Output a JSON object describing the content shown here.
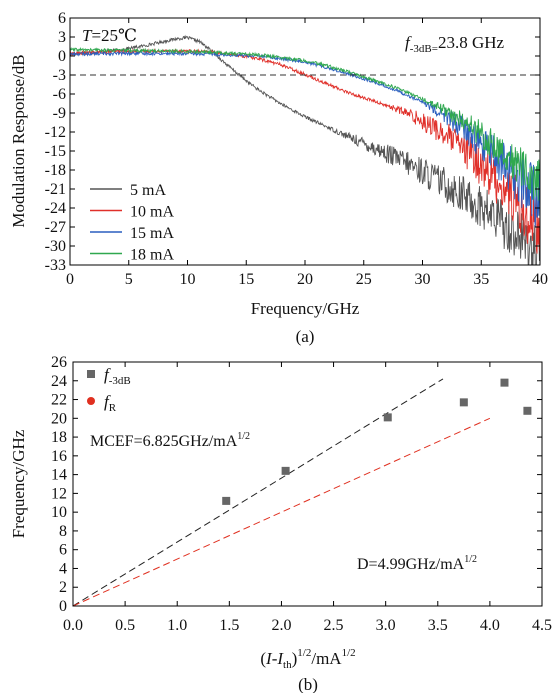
{
  "chart_data": [
    {
      "type": "line",
      "panel_label": "(a)",
      "xlabel": "Frequency/GHz",
      "ylabel": "Modulation Response/dB",
      "xlim": [
        0,
        40
      ],
      "ylim": [
        -33,
        6
      ],
      "xticks": [
        0,
        5,
        10,
        15,
        20,
        25,
        30,
        35,
        40
      ],
      "yticks": [
        6,
        3,
        0,
        -3,
        -6,
        -9,
        -12,
        -15,
        -18,
        -21,
        -24,
        -27,
        -30,
        -33
      ],
      "annotation_T_var": "T",
      "annotation_T_value": "=25℃",
      "annotation_f_var": "f",
      "annotation_f_sub": "-3dB=",
      "annotation_f_value": "23.8 GHz",
      "reference_line": {
        "y": -3,
        "style": "dashed",
        "color": "#333333"
      },
      "legend_position": "bottom-left",
      "series": [
        {
          "name": "5 mA",
          "color": "#555555",
          "x": [
            0,
            2,
            4,
            6,
            8,
            9,
            10,
            11,
            12,
            13,
            14,
            15,
            16,
            18,
            20,
            22,
            24,
            26,
            28,
            30,
            32,
            34,
            36,
            38,
            40
          ],
          "y": [
            0.3,
            0.6,
            0.9,
            1.5,
            2.3,
            2.7,
            2.9,
            2.3,
            0.9,
            -0.8,
            -2.4,
            -3.9,
            -5.3,
            -7.6,
            -9.6,
            -11.3,
            -13.0,
            -14.6,
            -16.3,
            -18.2,
            -20.3,
            -22.6,
            -25.2,
            -28.0,
            -31.5
          ],
          "noise_from": 22,
          "noise_amp": 4.5
        },
        {
          "name": "10 mA",
          "color": "#e0302a",
          "x": [
            0,
            4,
            8,
            10,
            12,
            14,
            16,
            18,
            20,
            22,
            24,
            26,
            28,
            30,
            32,
            34,
            36,
            38,
            40
          ],
          "y": [
            0.4,
            0.7,
            0.8,
            0.8,
            0.6,
            0.2,
            -0.4,
            -1.4,
            -2.9,
            -4.5,
            -6.0,
            -7.2,
            -8.5,
            -10.2,
            -12.5,
            -15.5,
            -19.0,
            -23.0,
            -27.0
          ],
          "noise_from": 27,
          "noise_amp": 5.0
        },
        {
          "name": "15 mA",
          "color": "#2a5fbf",
          "x": [
            0,
            4,
            8,
            12,
            16,
            20,
            22,
            24,
            26,
            28,
            30,
            32,
            34,
            36,
            38,
            40
          ],
          "y": [
            0.3,
            0.4,
            0.4,
            0.3,
            0.0,
            -0.9,
            -1.9,
            -3.0,
            -4.2,
            -5.6,
            -7.3,
            -9.5,
            -12.2,
            -15.5,
            -19.0,
            -23.0
          ],
          "noise_from": 30,
          "noise_amp": 5.0
        },
        {
          "name": "18 mA",
          "color": "#2fa84f",
          "x": [
            0,
            4,
            8,
            12,
            16,
            20,
            22,
            24,
            26,
            28,
            30,
            32,
            34,
            36,
            38,
            40
          ],
          "y": [
            1.0,
            0.9,
            0.8,
            0.6,
            0.2,
            -0.7,
            -1.6,
            -2.7,
            -3.9,
            -5.2,
            -6.8,
            -8.7,
            -11.0,
            -13.7,
            -16.8,
            -20.0
          ],
          "noise_from": 30,
          "noise_amp": 4.0
        }
      ]
    },
    {
      "type": "scatter",
      "panel_label": "(b)",
      "xlabel_pre": "(",
      "xlabel_var": "I",
      "xlabel_mid": "-",
      "xlabel_var2": "I",
      "xlabel_sub": "th",
      "xlabel_post": ")",
      "xlabel_sup": "1/2",
      "xlabel_unit": "/mA",
      "xlabel_sup2": "1/2",
      "ylabel": "Frequency/GHz",
      "xlim": [
        0.0,
        4.5
      ],
      "ylim": [
        0,
        26
      ],
      "xticks": [
        "0.0",
        "0.5",
        "1.0",
        "1.5",
        "2.0",
        "2.5",
        "3.0",
        "3.5",
        "4.0",
        "4.5"
      ],
      "yticks": [
        0,
        2,
        4,
        6,
        8,
        10,
        12,
        14,
        16,
        18,
        20,
        22,
        24,
        26
      ],
      "legend_position": "top-left",
      "annotation_mcef": "MCEF=6.825GHz/mA",
      "annotation_mcef_sup": "1/2",
      "annotation_d": "D=4.99GHz/mA",
      "annotation_d_sup": "1/2",
      "series": [
        {
          "name_var": "f",
          "name_sub": "-3dB",
          "color": "#666666",
          "marker": "square",
          "x": [
            1.47,
            2.04,
            3.02,
            3.75,
            4.14,
            4.36
          ],
          "y": [
            11.2,
            14.4,
            20.1,
            21.7,
            23.8,
            20.8
          ]
        },
        {
          "name_var": "f",
          "name_sub": "R",
          "color": "#e03020",
          "marker": "circle",
          "x": [],
          "y": []
        }
      ],
      "fit_lines": [
        {
          "color": "#222222",
          "style": "dashed",
          "x": [
            0,
            3.55
          ],
          "y": [
            0,
            24.2
          ]
        },
        {
          "color": "#e03020",
          "style": "dashed",
          "x": [
            0,
            4.0
          ],
          "y": [
            0,
            20.0
          ]
        }
      ]
    }
  ]
}
